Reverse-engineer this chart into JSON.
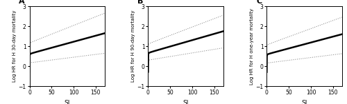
{
  "panels": [
    {
      "label": "A",
      "ylabel": "Log HR for H 30-day mortality",
      "xlabel": "SI"
    },
    {
      "label": "B",
      "ylabel": "Log HR for H 90-day mortality",
      "xlabel": "SI"
    },
    {
      "label": "C",
      "ylabel": "Log HR for H one-year mortality",
      "xlabel": "SI"
    }
  ],
  "xlim": [
    0,
    170
  ],
  "ylim": [
    -1,
    3
  ],
  "xticks": [
    0,
    50,
    100,
    150
  ],
  "yticks": [
    -1,
    0,
    1,
    2,
    3
  ],
  "line_color": "black",
  "ci_color": "#888888",
  "background_color": "white",
  "curves": {
    "A": {
      "main": {
        "x0": -0.4,
        "x170": 1.65,
        "knee": 5.0,
        "steep": 18.0
      },
      "upper": {
        "x0": -0.3,
        "x170": 2.65,
        "knee": 5.0,
        "steep": 18.0
      },
      "lower": {
        "x0": -0.3,
        "x170": 0.65,
        "knee": 5.0,
        "steep": 18.0
      }
    },
    "B": {
      "main": {
        "x0": -0.4,
        "x170": 1.75,
        "knee": 5.0,
        "steep": 18.0
      },
      "upper": {
        "x0": -0.3,
        "x170": 2.55,
        "knee": 5.0,
        "steep": 18.0
      },
      "lower": {
        "x0": -0.3,
        "x170": 0.92,
        "knee": 5.0,
        "steep": 18.0
      }
    },
    "C": {
      "main": {
        "x0": -0.4,
        "x170": 1.6,
        "knee": 5.0,
        "steep": 18.0
      },
      "upper": {
        "x0": -0.3,
        "x170": 2.45,
        "knee": 5.0,
        "steep": 18.0
      },
      "lower": {
        "x0": -0.3,
        "x170": 0.63,
        "knee": 5.0,
        "steep": 18.0
      }
    }
  }
}
